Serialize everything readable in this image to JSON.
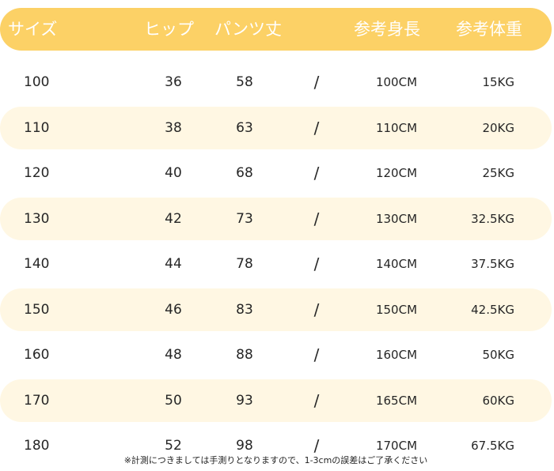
{
  "header": {
    "cols": [
      "サイズ",
      "ヒップ",
      "パンツ丈",
      "参考身長",
      "参考体重"
    ]
  },
  "rows": [
    {
      "size": "100",
      "hip": "36",
      "length": "58",
      "sep": "/",
      "height": "100CM",
      "weight": "15KG"
    },
    {
      "size": "110",
      "hip": "38",
      "length": "63",
      "sep": "/",
      "height": "110CM",
      "weight": "20KG"
    },
    {
      "size": "120",
      "hip": "40",
      "length": "68",
      "sep": "/",
      "height": "120CM",
      "weight": "25KG"
    },
    {
      "size": "130",
      "hip": "42",
      "length": "73",
      "sep": "/",
      "height": "130CM",
      "weight": "32.5KG"
    },
    {
      "size": "140",
      "hip": "44",
      "length": "78",
      "sep": "/",
      "height": "140CM",
      "weight": "37.5KG"
    },
    {
      "size": "150",
      "hip": "46",
      "length": "83",
      "sep": "/",
      "height": "150CM",
      "weight": "42.5KG"
    },
    {
      "size": "160",
      "hip": "48",
      "length": "88",
      "sep": "/",
      "height": "160CM",
      "weight": "50KG"
    },
    {
      "size": "170",
      "hip": "50",
      "length": "93",
      "sep": "/",
      "height": "165CM",
      "weight": "60KG"
    },
    {
      "size": "180",
      "hip": "52",
      "length": "98",
      "sep": "/",
      "height": "170CM",
      "weight": "67.5KG"
    }
  ],
  "note": "※計測につきましては手測りとなりますので、1-3cmの誤差はご了承ください",
  "colors": {
    "header_bg": "#fcd166",
    "header_text": "#ffffff",
    "stripe_bg": "#fff7e3"
  }
}
